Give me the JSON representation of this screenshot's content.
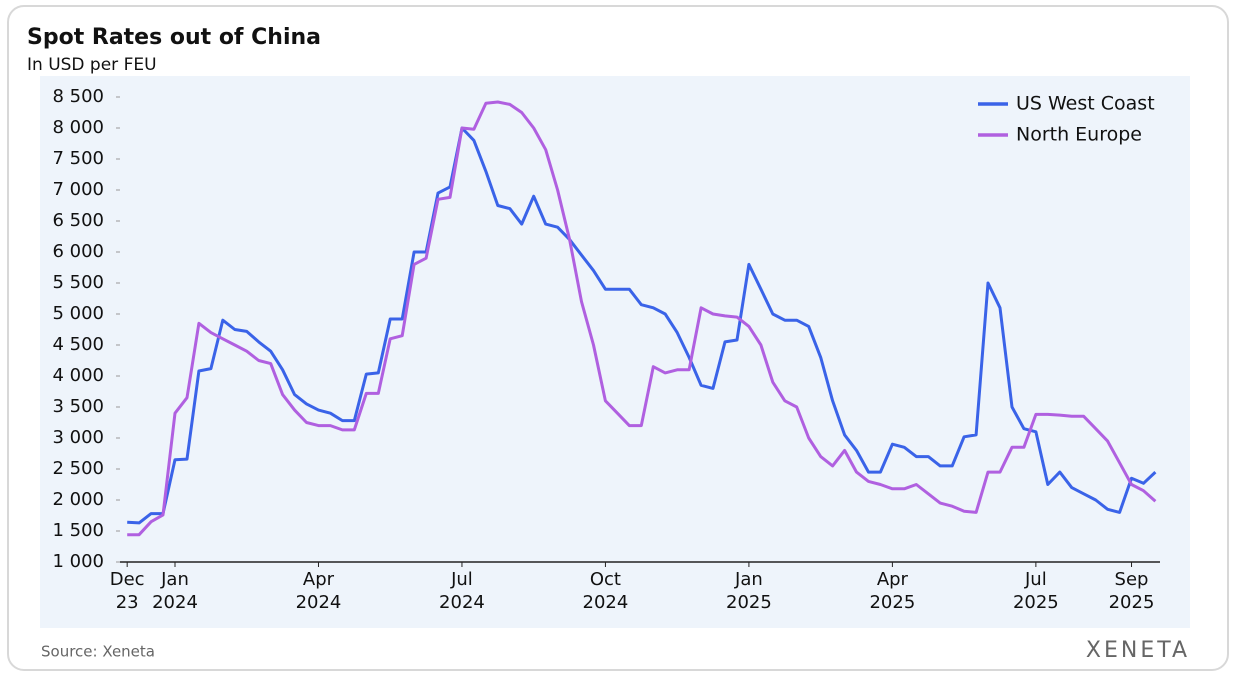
{
  "chart_data": {
    "type": "line",
    "title": "Spot Rates out of China",
    "subtitle": "In USD per FEU",
    "source": "Source: Xeneta",
    "brand": "XENETA",
    "x": [
      0,
      0.25,
      0.5,
      0.75,
      1,
      1.25,
      1.5,
      1.75,
      2,
      2.25,
      2.5,
      2.75,
      3,
      3.25,
      3.5,
      3.75,
      4,
      4.25,
      4.5,
      4.75,
      5,
      5.25,
      5.5,
      5.75,
      6,
      6.25,
      6.5,
      6.75,
      7,
      7.25,
      7.5,
      7.75,
      8,
      8.25,
      8.5,
      8.75,
      9,
      9.25,
      9.5,
      9.75,
      10,
      10.25,
      10.5,
      10.75,
      11,
      11.25,
      11.5,
      11.75,
      12,
      12.25,
      12.5,
      12.75,
      13,
      13.25,
      13.5,
      13.75,
      14,
      14.25,
      14.5,
      14.75,
      15,
      15.25,
      15.5,
      15.75,
      16,
      16.25,
      16.5,
      16.75,
      17,
      17.25,
      17.5,
      17.75,
      18,
      18.25,
      18.5,
      18.75,
      19,
      19.25,
      19.5,
      19.75,
      20,
      20.25,
      20.5,
      20.75,
      21,
      21.25,
      21.5
    ],
    "series": [
      {
        "name": "US West Coast",
        "color": "#3a63e8",
        "values": [
          1640,
          1630,
          1780,
          1780,
          2650,
          2660,
          4080,
          4120,
          4900,
          4750,
          4720,
          4550,
          4400,
          4100,
          3700,
          3550,
          3450,
          3400,
          3280,
          3280,
          4030,
          4050,
          4920,
          4920,
          6000,
          6000,
          6950,
          7050,
          8000,
          7800,
          7300,
          6750,
          6700,
          6450,
          6900,
          6450,
          6400,
          6200,
          5950,
          5700,
          5400,
          5400,
          5400,
          5150,
          5100,
          5000,
          4700,
          4300,
          3850,
          3800,
          4550,
          4580,
          5800,
          5400,
          5000,
          4900,
          4900,
          4800,
          4300,
          3600,
          3050,
          2800,
          2450,
          2450,
          2900,
          2850,
          2700,
          2700,
          2550,
          2550,
          3020,
          3050,
          5500,
          5100,
          3500,
          3150,
          3100,
          2250,
          2450,
          2200,
          2100,
          2000,
          1850,
          1800,
          2350,
          2270,
          2450
        ]
      },
      {
        "name": "North Europe",
        "color": "#b060e0",
        "values": [
          1440,
          1440,
          1650,
          1760,
          3400,
          3650,
          4850,
          4700,
          4600,
          4500,
          4400,
          4250,
          4200,
          3700,
          3450,
          3250,
          3200,
          3200,
          3130,
          3130,
          3720,
          3720,
          4600,
          4650,
          5800,
          5900,
          6850,
          6880,
          8000,
          7980,
          8400,
          8420,
          8380,
          8250,
          8000,
          7650,
          7000,
          6200,
          5200,
          4500,
          3600,
          3400,
          3200,
          3200,
          4150,
          4050,
          4100,
          4100,
          5100,
          5000,
          4970,
          4950,
          4800,
          4500,
          3900,
          3600,
          3500,
          3000,
          2700,
          2550,
          2800,
          2450,
          2300,
          2250,
          2180,
          2180,
          2250,
          2100,
          1950,
          1900,
          1820,
          1800,
          2450,
          2450,
          2850,
          2850,
          3380,
          3380,
          3370,
          3350,
          3350,
          3150,
          2950,
          2600,
          2250,
          2150,
          1980
        ]
      }
    ],
    "xlim": [
      -0.15,
      21.7
    ],
    "xticks": [
      {
        "value": 0,
        "label": "Dec\n23"
      },
      {
        "value": 1,
        "label": "Jan\n2024"
      },
      {
        "value": 4,
        "label": "Apr\n2024"
      },
      {
        "value": 7,
        "label": "Jul\n2024"
      },
      {
        "value": 10,
        "label": "Oct\n2024"
      },
      {
        "value": 13,
        "label": "Jan\n2025"
      },
      {
        "value": 16,
        "label": "Apr\n2025"
      },
      {
        "value": 19,
        "label": "Jul\n2025"
      },
      {
        "value": 21,
        "label": "Sep\n2025"
      }
    ],
    "ylim": [
      1000,
      8500
    ],
    "yticks": [
      {
        "value": 1000,
        "label": "1 000"
      },
      {
        "value": 1500,
        "label": "1 500"
      },
      {
        "value": 2000,
        "label": "2 000"
      },
      {
        "value": 2500,
        "label": "2 500"
      },
      {
        "value": 3000,
        "label": "3 000"
      },
      {
        "value": 3500,
        "label": "3 500"
      },
      {
        "value": 4000,
        "label": "4 000"
      },
      {
        "value": 4500,
        "label": "4 500"
      },
      {
        "value": 5000,
        "label": "5 000"
      },
      {
        "value": 5500,
        "label": "5 500"
      },
      {
        "value": 6000,
        "label": "6 000"
      },
      {
        "value": 6500,
        "label": "6 500"
      },
      {
        "value": 7000,
        "label": "7 000"
      },
      {
        "value": 7500,
        "label": "7 500"
      },
      {
        "value": 8000,
        "label": "8 000"
      },
      {
        "value": 8500,
        "label": "8 500"
      }
    ],
    "legend": "top-right"
  }
}
